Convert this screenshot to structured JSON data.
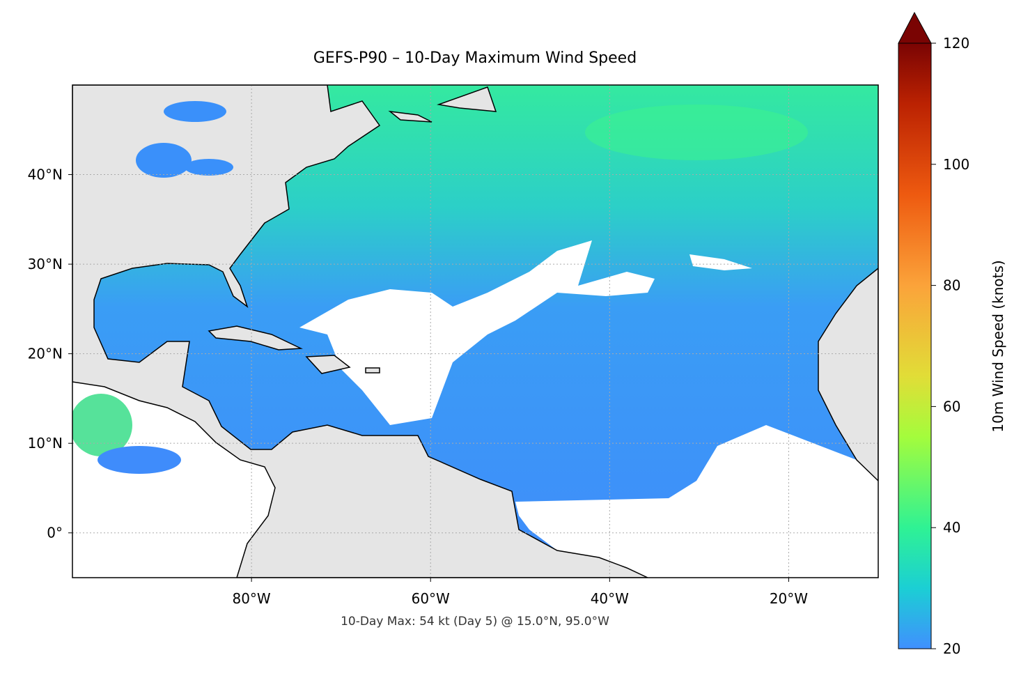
{
  "title": "GEFS-P90 – 10-Day Maximum Wind Speed",
  "annotation": "10-Day Max: 54 kt (Day 5) @ 15.0°N, 95.0°W",
  "map": {
    "xlim": [
      -100,
      -10
    ],
    "ylim": [
      -5,
      50
    ],
    "xticks": [
      {
        "value": -80,
        "label": "80°W"
      },
      {
        "value": -60,
        "label": "60°W"
      },
      {
        "value": -40,
        "label": "40°W"
      },
      {
        "value": -20,
        "label": "20°W"
      }
    ],
    "yticks": [
      {
        "value": 0,
        "label": "0°"
      },
      {
        "value": 10,
        "label": "10°N"
      },
      {
        "value": 20,
        "label": "20°N"
      },
      {
        "value": 30,
        "label": "30°N"
      },
      {
        "value": 40,
        "label": "40°N"
      }
    ]
  },
  "colorbar": {
    "label": "10m Wind Speed (knots)",
    "lim": [
      20,
      120
    ],
    "ticks": [
      20,
      40,
      60,
      80,
      100,
      120
    ]
  }
}
